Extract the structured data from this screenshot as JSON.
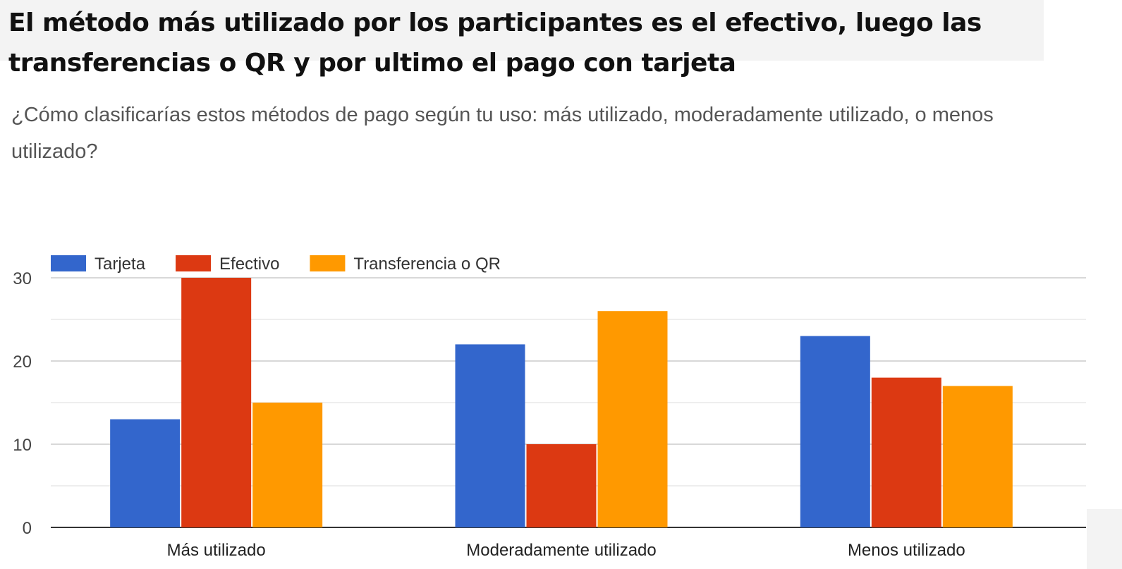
{
  "page": {
    "headline": "El método más utilizado por los participantes es el efectivo, luego las transferencias o QR y por ultimo el pago con tarjeta",
    "question": "¿Cómo clasificarías estos métodos de pago según tu uso: más utilizado, moderadamente utilizado, o menos utilizado?"
  },
  "chart_data": {
    "type": "bar",
    "title": "",
    "xlabel": "",
    "ylabel": "",
    "categories": [
      "Más utilizado",
      "Moderadamente utilizado",
      "Menos utilizado"
    ],
    "series": [
      {
        "name": "Tarjeta",
        "color": "#3366cc",
        "values": [
          13,
          22,
          23
        ]
      },
      {
        "name": "Efectivo",
        "color": "#dc3912",
        "values": [
          30,
          10,
          18
        ]
      },
      {
        "name": "Transferencia o QR",
        "color": "#ff9900",
        "values": [
          15,
          26,
          17
        ]
      }
    ],
    "yticks": [
      "0",
      "10",
      "20",
      "30"
    ],
    "ylim": [
      0,
      30
    ],
    "grid": true,
    "legend_position": "top-left"
  }
}
